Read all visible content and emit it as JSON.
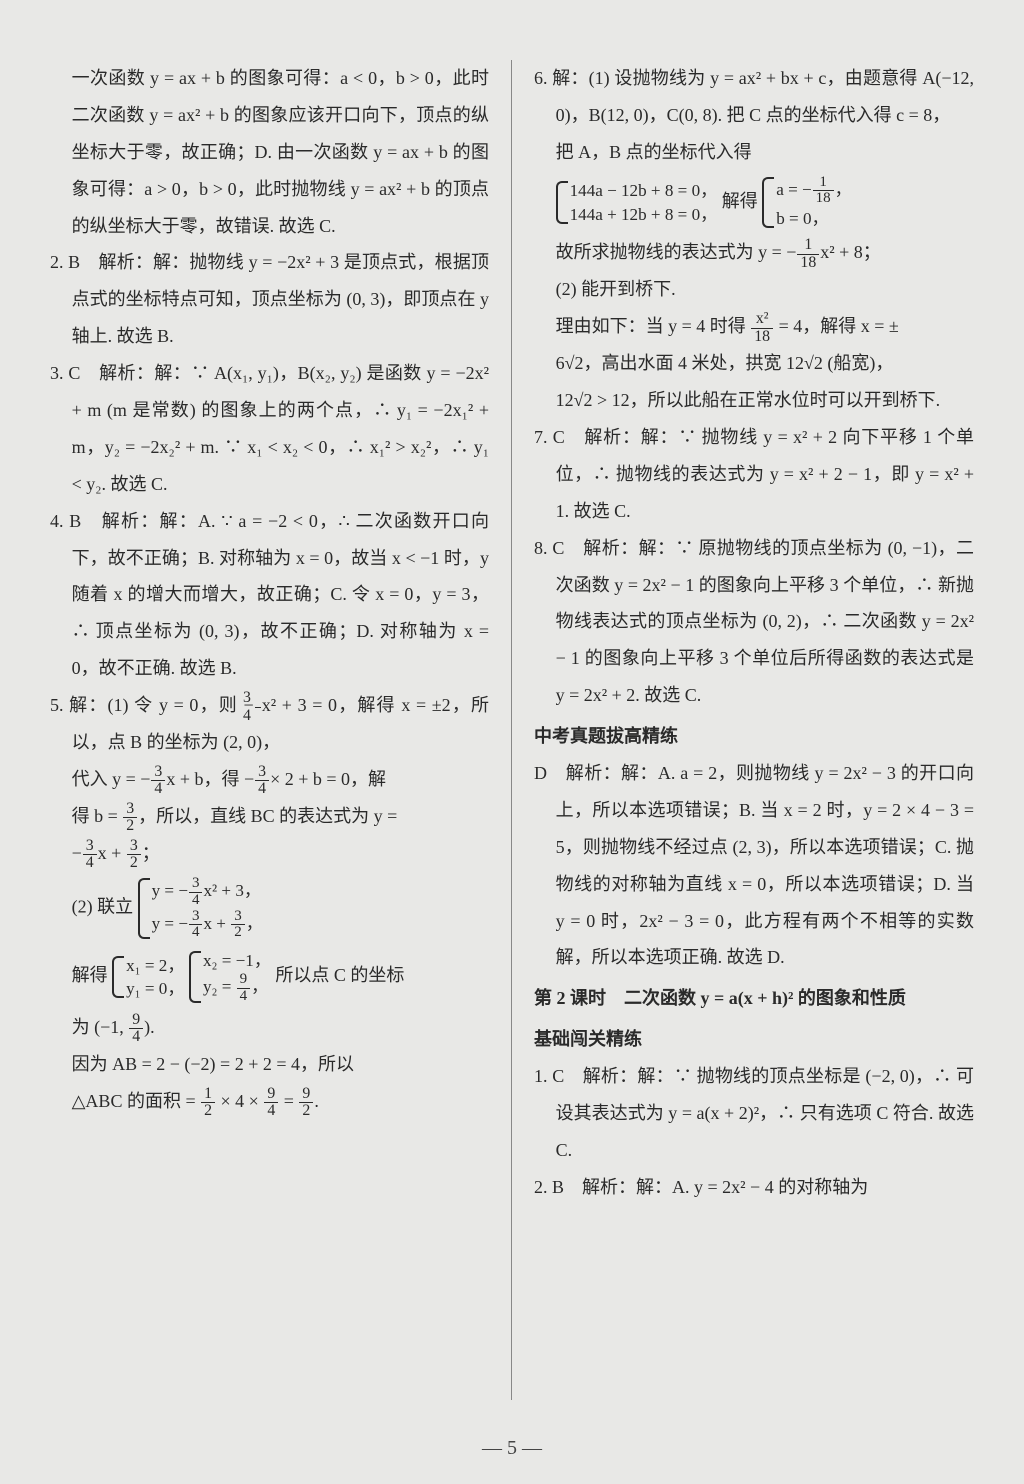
{
  "page_number": "— 5 —",
  "background_color": "#e8e8e6",
  "text_color": "#2a2a2a",
  "font_size_pt": 14,
  "left": {
    "para0": "一次函数 y = ax + b 的图象可得：a < 0，b > 0，此时二次函数 y = ax² + b 的图象应该开口向下，顶点的纵坐标大于零，故正确；D. 由一次函数 y = ax + b 的图象可得：a > 0，b > 0，此时抛物线 y = ax² + b 的顶点的纵坐标大于零，故错误. 故选 C.",
    "q2": "2. B　解析：解：抛物线 y = −2x² + 3 是顶点式，根据顶点式的坐标特点可知，顶点坐标为 (0, 3)，即顶点在 y 轴上. 故选 B.",
    "q3": "3. C　解析：解：∵ A(x₁, y₁)，B(x₂, y₂) 是函数 y = −2x² + m (m 是常数) 的图象上的两个点，∴ y₁ = −2x₁² + m，y₂ = −2x₂² + m. ∵ x₁ < x₂ < 0，∴ x₁² > x₂²，∴ y₁ < y₂. 故选 C.",
    "q4": "4. B　解析：解：A. ∵ a = −2 < 0，∴ 二次函数开口向下，故不正确；B. 对称轴为 x = 0，故当 x < −1 时，y 随着 x 的增大而增大，故正确；C. 令 x = 0，y = 3，∴ 顶点坐标为 (0, 3)，故不正确；D. 对称轴为 x = 0，故不正确. 故选 B.",
    "q5a": "5. 解：(1) 令 y = 0，则 −",
    "q5a2": "x² + 3 = 0，解得 x = ±2，所以，点 B 的坐标为 (2, 0)，",
    "q5b": "代入 y = −",
    "q5b2": "x + b，得 −",
    "q5b3": "× 2 + b = 0，解",
    "q5c": "得 b =",
    "q5c2": "，所以，直线 BC 的表达式为 y =",
    "q5d": "−",
    "q5d2": "x +",
    "q5d3": "；",
    "q5e": "(2) 联立",
    "q5e_eq1a": "y = −",
    "q5e_eq1b": "x² + 3，",
    "q5e_eq2a": "y = −",
    "q5e_eq2b": "x +",
    "q5e_eq2c": "，",
    "q5f": "解得",
    "q5f_s1a": "x₁ = 2，",
    "q5f_s1b": "y₁ = 0，",
    "q5f_s2a": "x₂ = −1，",
    "q5f_s2b": "y₂ =",
    "q5f_s2c": "，",
    "q5f2": " 所以点 C 的坐标",
    "q5g": "为 (−1,",
    "q5g2": ").",
    "q5h": "因为 AB = 2 − (−2) = 2 + 2 = 4，所以",
    "q5i": "△ABC 的面积 =",
    "q5i2": "× 4 ×",
    "q5i3": "=",
    "q5i4": "."
  },
  "right": {
    "q6a": "6. 解：(1) 设抛物线为 y = ax² + bx + c，由题意得 A(−12, 0)，B(12, 0)，C(0, 8). 把 C 点的坐标代入得 c = 8，",
    "q6b": "把 A，B 点的坐标代入得",
    "q6c_eq1": "144a − 12b + 8 = 0，",
    "q6c_eq2": "144a + 12b + 8 = 0，",
    "q6c_mid": "解得",
    "q6c_s1a": "a = −",
    "q6c_s1b": "，",
    "q6c_s2": "b = 0，",
    "q6d": "故所求抛物线的表达式为 y = −",
    "q6d2": "x² + 8；",
    "q6e": "(2) 能开到桥下.",
    "q6f": "理由如下：当 y = 4 时得",
    "q6f2": "= 4，解得 x = ±",
    "q6g": "6√2，高出水面 4 米处，拱宽 12√2 (船宽)，",
    "q6h": "12√2 > 12，所以此船在正常水位时可以开到桥下.",
    "q7": "7. C　解析：解：∵ 抛物线 y = x² + 2 向下平移 1 个单位，∴ 抛物线的表达式为 y = x² + 2 − 1，即 y = x² + 1. 故选 C.",
    "q8": "8. C　解析：解：∵ 原抛物线的顶点坐标为 (0, −1)，二次函数 y = 2x² − 1 的图象向上平移 3 个单位，∴ 新抛物线表达式的顶点坐标为 (0, 2)，∴ 二次函数 y = 2x² − 1 的图象向上平移 3 个单位后所得函数的表达式是 y = 2x² + 2. 故选 C.",
    "h1": "中考真题拔高精练",
    "qD": "D　解析：解：A. a = 2，则抛物线 y = 2x² − 3 的开口向上，所以本选项错误；B. 当 x = 2 时，y = 2 × 4 − 3 = 5，则抛物线不经过点 (2, 3)，所以本选项错误；C. 抛物线的对称轴为直线 x = 0，所以本选项错误；D. 当 y = 0 时，2x² − 3 = 0，此方程有两个不相等的实数解，所以本选项正确. 故选 D.",
    "h2": "第 2 课时　二次函数 y = a(x + h)² 的图象和性质",
    "h3": "基础闯关精练",
    "q1": "1. C　解析：解：∵ 抛物线的顶点坐标是 (−2, 0)，∴ 可设其表达式为 y = a(x + 2)²，∴ 只有选项 C 符合. 故选 C.",
    "q2r": "2. B　解析：解：A. y = 2x² − 4 的对称轴为",
    "frac_3_4_n": "3",
    "frac_3_4_d": "4",
    "frac_3_2_n": "3",
    "frac_3_2_d": "2",
    "frac_9_4_n": "9",
    "frac_9_4_d": "4",
    "frac_1_2_n": "1",
    "frac_1_2_d": "2",
    "frac_9_2_n": "9",
    "frac_9_2_d": "2",
    "frac_1_18_n": "1",
    "frac_1_18_d": "18",
    "frac_x2_18_n": "x²",
    "frac_x2_18_d": "18"
  }
}
